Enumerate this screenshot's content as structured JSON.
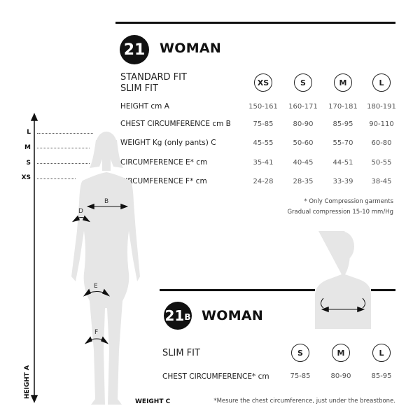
{
  "section_21": {
    "badge": "21",
    "title": "WOMAN",
    "fits": [
      "STANDARD FIT",
      "SLIM FIT"
    ],
    "sizes": [
      "XS",
      "S",
      "M",
      "L"
    ],
    "rows": [
      {
        "label": "HEIGHT cm A",
        "values": [
          "150-161",
          "160-171",
          "170-181",
          "180-191"
        ]
      },
      {
        "label": "CHEST CIRCUMFERENCE cm B",
        "values": [
          "75-85",
          "80-90",
          "85-95",
          "90-110"
        ]
      },
      {
        "label": "WEIGHT Kg (only pants) C",
        "values": [
          "45-55",
          "50-60",
          "55-70",
          "60-80"
        ]
      },
      {
        "label": "CIRCUMFERENCE E* cm",
        "values": [
          "35-41",
          "40-45",
          "44-51",
          "50-55"
        ]
      },
      {
        "label": "CIRCUMFERENCE F* cm",
        "values": [
          "24-28",
          "28-35",
          "33-39",
          "38-45"
        ]
      }
    ],
    "notes": [
      "* Only Compression garments",
      "Gradual compression 15-10 mm/Hg"
    ]
  },
  "section_21b": {
    "badge_number": "21",
    "badge_letter": "B",
    "title": "WOMAN",
    "fit": "SLIM FIT",
    "sizes": [
      "S",
      "M",
      "L"
    ],
    "rows": [
      {
        "label": "CHEST CIRCUMFERENCE* cm",
        "values": [
          "75-85",
          "80-90",
          "85-95"
        ]
      }
    ],
    "note": "*Mesure the chest circumference, just under the breastbone."
  },
  "figure": {
    "size_levels": [
      "L",
      "M",
      "S",
      "XS"
    ],
    "height_label": "HEIGHT A",
    "weight_label": "WEIGHT C",
    "measure_labels": {
      "B": "B",
      "D": "D",
      "E": "E",
      "F": "F"
    },
    "silhouette_color": "#e6e6e6"
  }
}
